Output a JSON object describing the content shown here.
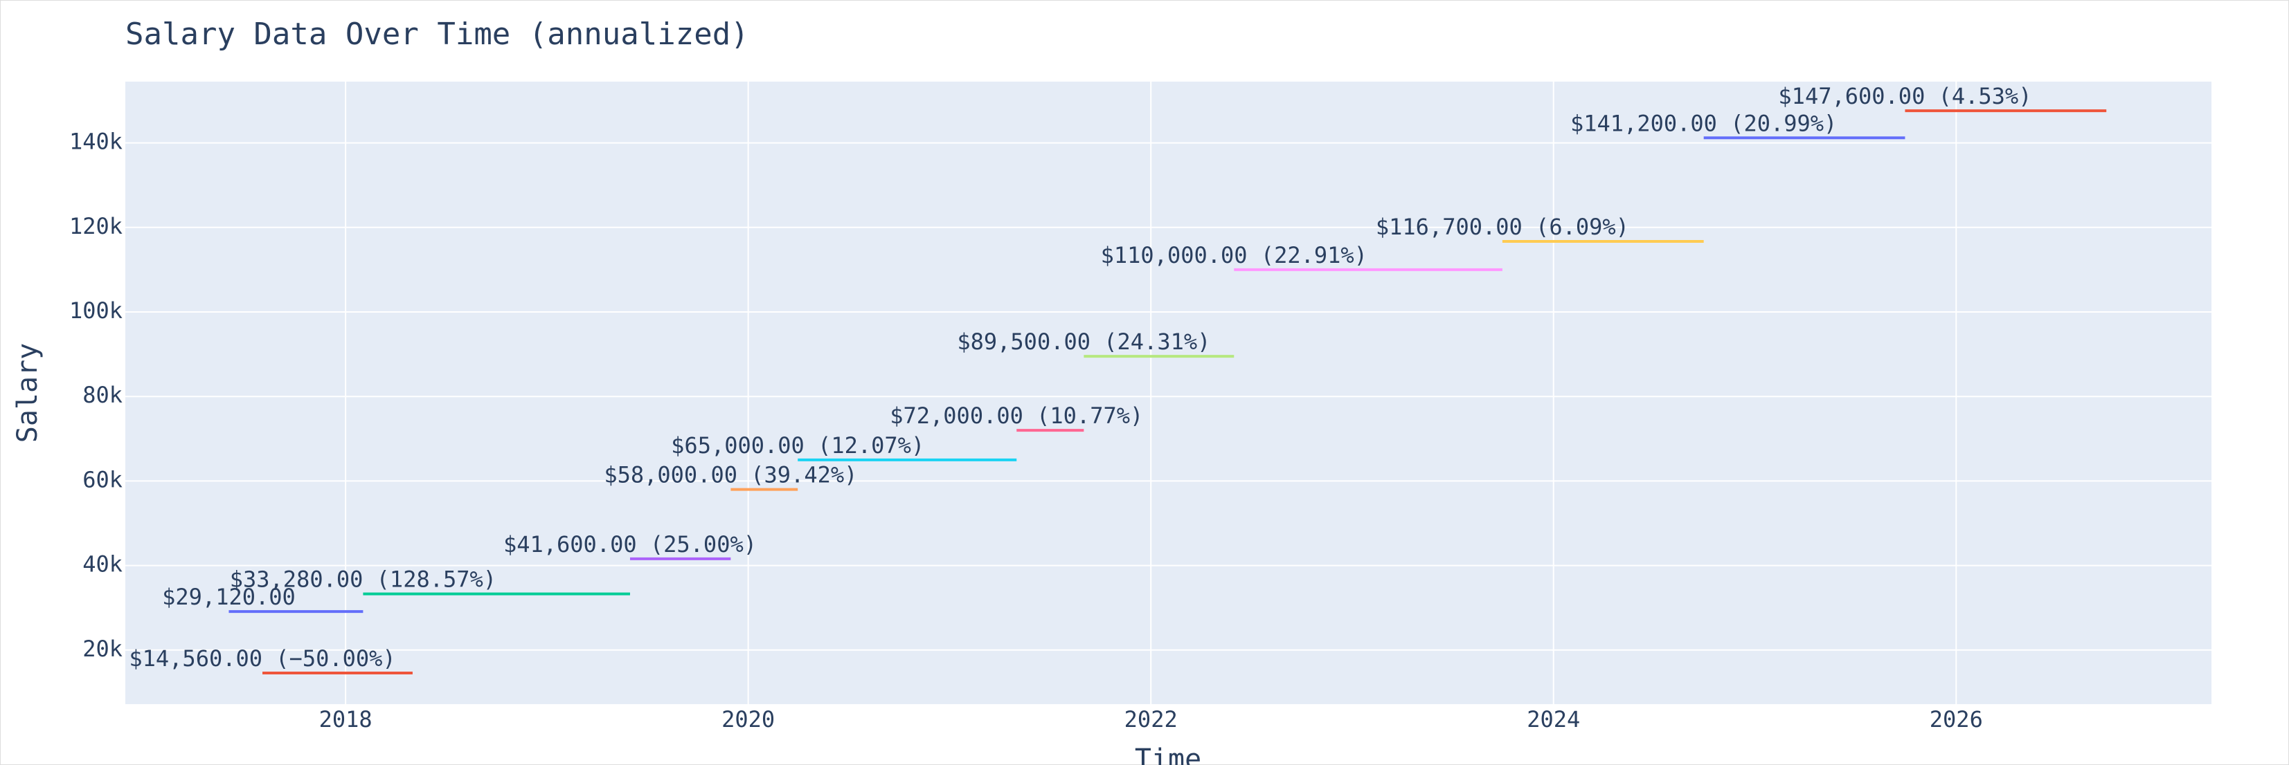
{
  "chart_data": {
    "type": "segment",
    "title": "Salary Data Over Time (annualized)",
    "x_label": "Time",
    "y_label": "Salary",
    "xlim": [
      2016.906,
      2027.268
    ],
    "xticks": [
      2018,
      2020,
      2022,
      2024,
      2026
    ],
    "ylim": [
      7200,
      154500
    ],
    "yticks": [
      {
        "value": 20000,
        "label": "20k"
      },
      {
        "value": 40000,
        "label": "40k"
      },
      {
        "value": 60000,
        "label": "60k"
      },
      {
        "value": 80000,
        "label": "80k"
      },
      {
        "value": 100000,
        "label": "100k"
      },
      {
        "value": 120000,
        "label": "120k"
      },
      {
        "value": 140000,
        "label": "140k"
      }
    ],
    "grid": true,
    "x_start": [
      2017.587,
      2017.42,
      2018.087,
      2019.413,
      2019.913,
      2020.246,
      2021.333,
      2021.667,
      2022.413,
      2023.746,
      2024.746,
      2025.746
    ],
    "x_end": [
      2018.333,
      2018.087,
      2019.413,
      2019.913,
      2020.246,
      2021.333,
      2021.667,
      2022.413,
      2023.746,
      2024.746,
      2025.746,
      2026.746
    ],
    "values": [
      14560,
      29120,
      33280,
      41600,
      58000,
      65000,
      72000,
      89500,
      110000,
      116700,
      141200,
      147600
    ],
    "value_labels": [
      "$14,560.00 (−50.00%)",
      "$29,120.00",
      "$33,280.00 (128.57%)",
      "$41,600.00 (25.00%)",
      "$58,000.00 (39.42%)",
      "$65,000.00 (12.07%)",
      "$72,000.00 (10.77%)",
      "$89,500.00 (24.31%)",
      "$110,000.00 (22.91%)",
      "$116,700.00 (6.09%)",
      "$141,200.00 (20.99%)",
      "$147,600.00 (4.53%)"
    ],
    "colors": [
      "#EF553B",
      "#636EFA",
      "#00CC96",
      "#AB63FA",
      "#FFA15A",
      "#19D3F3",
      "#FF6692",
      "#B6E880",
      "#FF97FF",
      "#FECB52",
      "#636EFA",
      "#EF553B"
    ]
  }
}
